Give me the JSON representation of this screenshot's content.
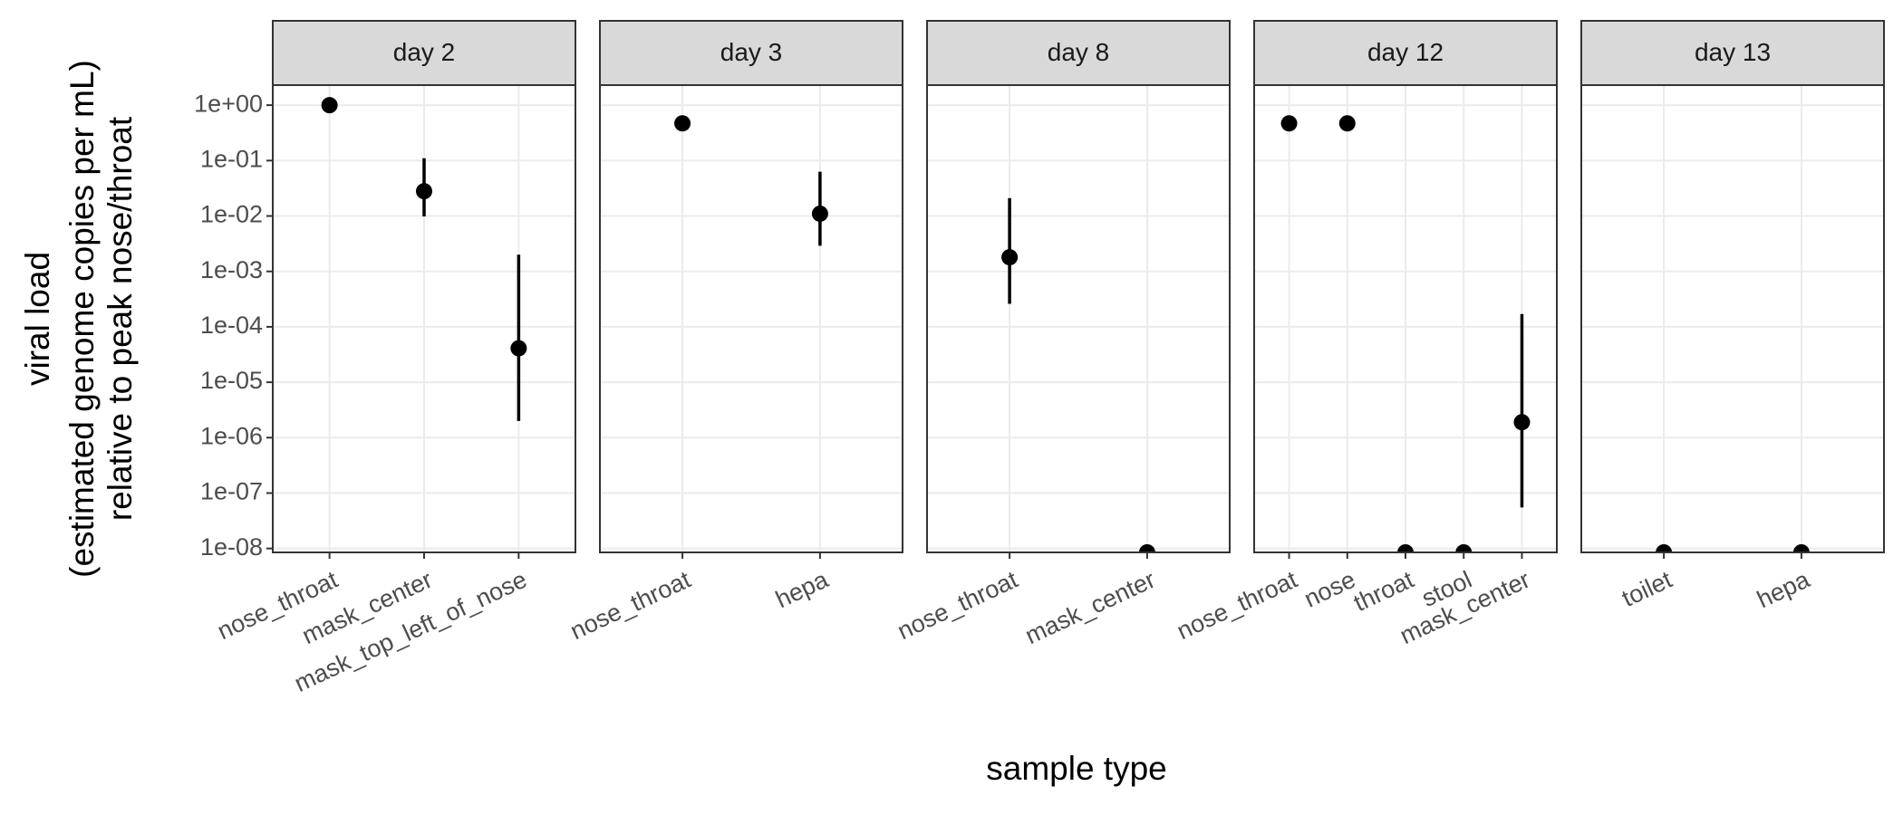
{
  "shared_axis": {
    "xlabel": "sample type",
    "ylabel": [
      "viral load",
      "(estimated genome copies per mL)",
      "relative to peak nose/throat"
    ],
    "log_scale": true,
    "ylim": [
      8.5e-09,
      2.3
    ],
    "yticks": [
      {
        "value": 1,
        "label": "1e+00"
      },
      {
        "value": 0.1,
        "label": "1e-01"
      },
      {
        "value": 0.01,
        "label": "1e-02"
      },
      {
        "value": 0.001,
        "label": "1e-03"
      },
      {
        "value": 0.0001,
        "label": "1e-04"
      },
      {
        "value": 1e-05,
        "label": "1e-05"
      },
      {
        "value": 1e-06,
        "label": "1e-06"
      },
      {
        "value": 1e-07,
        "label": "1e-07"
      },
      {
        "value": 1e-08,
        "label": "1e-08"
      }
    ],
    "grid": true,
    "point_color": "#000000"
  },
  "chart_data": [
    {
      "type": "scatter",
      "title": "day 2",
      "categories": [
        "nose_throat",
        "mask_center",
        "mask_top_left_of_nose"
      ],
      "values": [
        1,
        0.028,
        4.1e-05
      ],
      "error_low": [
        null,
        0.0098,
        2e-06
      ],
      "error_high": [
        null,
        0.11,
        0.002
      ]
    },
    {
      "type": "scatter",
      "title": "day 3",
      "categories": [
        "nose_throat",
        "hepa"
      ],
      "values": [
        0.47,
        0.011
      ],
      "error_low": [
        null,
        0.0029
      ],
      "error_high": [
        null,
        0.063
      ]
    },
    {
      "type": "scatter",
      "title": "day 8",
      "categories": [
        "nose_throat",
        "mask_center"
      ],
      "values": [
        0.0018,
        8.5e-09
      ],
      "error_low": [
        0.00026,
        null
      ],
      "error_high": [
        0.021,
        null
      ]
    },
    {
      "type": "scatter",
      "title": "day 12",
      "categories": [
        "nose_throat",
        "nose",
        "throat",
        "stool",
        "mask_center"
      ],
      "values": [
        0.47,
        0.47,
        8.5e-09,
        8.5e-09,
        1.9e-06
      ],
      "error_low": [
        null,
        null,
        null,
        null,
        5.5e-08
      ],
      "error_high": [
        null,
        null,
        null,
        null,
        0.00017
      ]
    },
    {
      "type": "scatter",
      "title": "day 13",
      "categories": [
        "toilet",
        "hepa"
      ],
      "values": [
        8.5e-09,
        8.5e-09
      ],
      "error_low": [
        null,
        null
      ],
      "error_high": [
        null,
        null
      ]
    }
  ]
}
